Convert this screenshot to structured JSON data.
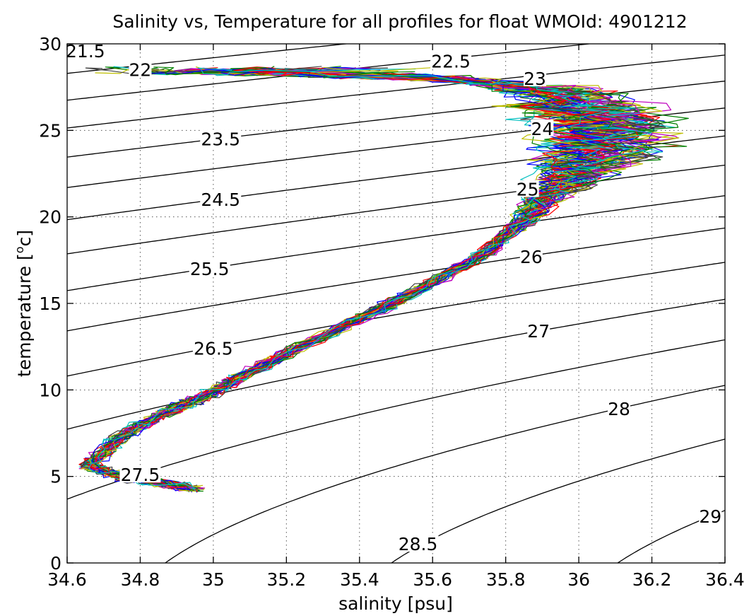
{
  "chart_data": {
    "type": "scatter",
    "title": "Salinity vs, Temperature for all profiles for float WMOId: 4901212",
    "xlabel": "salinity [psu]",
    "ylabel_main": "temperature [",
    "ylabel_sup": "o",
    "ylabel_end": "c]",
    "xlim": [
      34.6,
      36.4
    ],
    "ylim": [
      0,
      30
    ],
    "x_ticks": [
      34.6,
      34.8,
      35.0,
      35.2,
      35.4,
      35.6,
      35.8,
      36.0,
      36.2,
      36.4
    ],
    "x_tick_labels": [
      "34.6",
      "34.8",
      "35",
      "35.2",
      "35.4",
      "35.6",
      "35.8",
      "36",
      "36.2",
      "36.4"
    ],
    "y_ticks": [
      0,
      5,
      10,
      15,
      20,
      25,
      30
    ],
    "y_tick_labels": [
      "0",
      "5",
      "10",
      "15",
      "20",
      "25",
      "30"
    ],
    "grid": true,
    "density_contours": [
      {
        "label": "21.5",
        "level": 21.5,
        "label_at": [
          34.65,
          29.6
        ]
      },
      {
        "label": "22",
        "level": 22.0,
        "label_at": [
          34.8,
          28.5
        ]
      },
      {
        "label": "22.5",
        "level": 22.5,
        "label_at": [
          35.65,
          29.0
        ]
      },
      {
        "label": "23",
        "level": 23.0,
        "label_at": [
          35.88,
          28.0
        ]
      },
      {
        "label": "23.5",
        "level": 23.5,
        "label_at": [
          35.02,
          24.5
        ]
      },
      {
        "label": "24",
        "level": 24.0,
        "label_at": [
          35.9,
          25.1
        ]
      },
      {
        "label": "24.5",
        "level": 24.5,
        "label_at": [
          35.02,
          21.0
        ]
      },
      {
        "label": "25",
        "level": 25.0,
        "label_at": [
          35.86,
          21.6
        ]
      },
      {
        "label": "25.5",
        "level": 25.5,
        "label_at": [
          34.99,
          17.0
        ]
      },
      {
        "label": "26",
        "level": 26.0,
        "label_at": [
          35.87,
          17.7
        ]
      },
      {
        "label": "26.5",
        "level": 26.5,
        "label_at": [
          35.0,
          12.4
        ]
      },
      {
        "label": "27",
        "level": 27.0,
        "label_at": [
          35.89,
          13.4
        ]
      },
      {
        "label": "27.5",
        "level": 27.5,
        "label_at": [
          34.8,
          5.1
        ]
      },
      {
        "label": "28",
        "level": 28.0,
        "label_at": [
          36.11,
          8.9
        ]
      },
      {
        "label": "28.5",
        "level": 28.5,
        "label_at": [
          35.56,
          1.1
        ]
      },
      {
        "label": "29",
        "level": 29.0,
        "label_at": [
          36.36,
          2.7
        ]
      }
    ],
    "profile_colors": [
      "#0000ff",
      "#008000",
      "#ff0000",
      "#00bfbf",
      "#bf00bf",
      "#bfbf00",
      "#404040"
    ],
    "mean_profile": [
      {
        "s": 34.95,
        "t": 4.3
      },
      {
        "s": 34.75,
        "t": 5.0
      },
      {
        "s": 34.66,
        "t": 5.6
      },
      {
        "s": 34.74,
        "t": 7.2
      },
      {
        "s": 34.85,
        "t": 8.5
      },
      {
        "s": 34.97,
        "t": 9.6
      },
      {
        "s": 35.08,
        "t": 10.8
      },
      {
        "s": 35.25,
        "t": 12.6
      },
      {
        "s": 35.45,
        "t": 14.6
      },
      {
        "s": 35.6,
        "t": 16.2
      },
      {
        "s": 35.75,
        "t": 18.0
      },
      {
        "s": 35.86,
        "t": 20.0
      },
      {
        "s": 35.95,
        "t": 22.0
      },
      {
        "s": 36.02,
        "t": 23.5
      },
      {
        "s": 36.05,
        "t": 24.8
      },
      {
        "s": 36.0,
        "t": 26.2
      },
      {
        "s": 35.9,
        "t": 27.3
      },
      {
        "s": 35.65,
        "t": 28.0
      },
      {
        "s": 35.2,
        "t": 28.3
      },
      {
        "s": 34.7,
        "t": 28.5
      }
    ]
  }
}
